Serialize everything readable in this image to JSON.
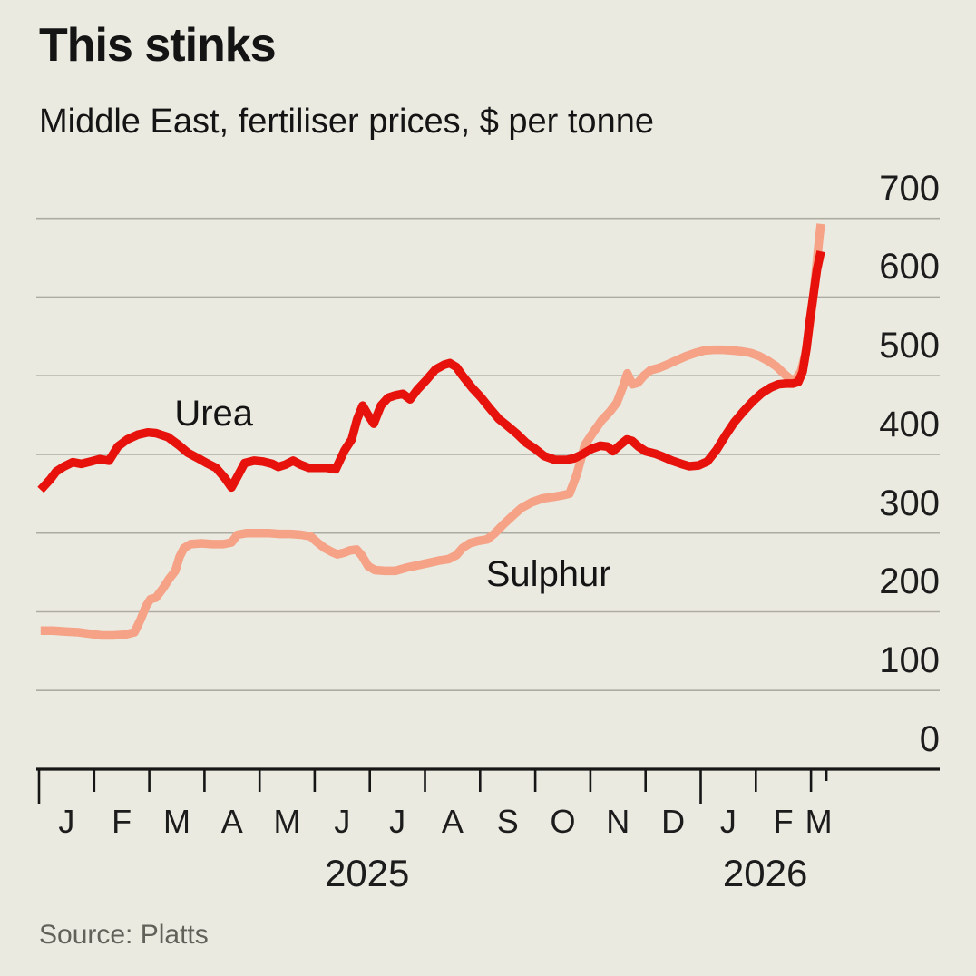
{
  "header": {
    "title": "This stinks",
    "subtitle": "Middle East, fertiliser prices, $ per tonne"
  },
  "source": {
    "text": "Source: Platts"
  },
  "colors": {
    "background": "#EBEAE1",
    "urea": "#E6120B",
    "sulphur": "#F5A286",
    "gridline": "#ADACA3",
    "axis": "#161616",
    "text": "#141414",
    "source_text": "#61615A"
  },
  "chart_data": {
    "type": "line",
    "title": "This stinks",
    "subtitle": "Middle East, fertiliser prices, $ per tonne",
    "ylabel": "$ per tonne",
    "ylim": [
      0,
      700
    ],
    "y_ticks": [
      700,
      600,
      500,
      400,
      300,
      200,
      100,
      0
    ],
    "grid": true,
    "legend_position": "inline-labels",
    "x_start": "Jan 2025",
    "x_end": "early Mar 2026",
    "months_shown": 14.28,
    "month_labels": [
      "J",
      "F",
      "M",
      "A",
      "M",
      "J",
      "J",
      "A",
      "S",
      "O",
      "N",
      "D",
      "J",
      "F",
      "M"
    ],
    "long_tick_indices": [
      0,
      12
    ],
    "end_stub_month": 14.28,
    "last_month_label_center": 14.14,
    "year_labels": [
      {
        "label": "2025",
        "month_pos": 5.95
      },
      {
        "label": "2026",
        "month_pos": 13.17
      }
    ],
    "annotations": [
      {
        "text": "Urea",
        "month_pos": 3.17,
        "value": 452
      },
      {
        "text": "Sulphur",
        "month_pos": 9.24,
        "value": 248
      }
    ],
    "series": [
      {
        "name": "Sulphur",
        "color": "#F5A286",
        "points": [
          [
            0.03,
            176
          ],
          [
            0.25,
            176
          ],
          [
            0.48,
            175
          ],
          [
            0.71,
            174
          ],
          [
            0.94,
            172
          ],
          [
            1.13,
            170
          ],
          [
            1.35,
            170
          ],
          [
            1.56,
            171
          ],
          [
            1.73,
            174
          ],
          [
            1.84,
            190
          ],
          [
            1.94,
            207
          ],
          [
            2.02,
            216
          ],
          [
            2.12,
            218
          ],
          [
            2.24,
            229
          ],
          [
            2.35,
            241
          ],
          [
            2.47,
            252
          ],
          [
            2.55,
            270
          ],
          [
            2.63,
            281
          ],
          [
            2.75,
            286
          ],
          [
            2.94,
            287
          ],
          [
            3.14,
            286
          ],
          [
            3.34,
            286
          ],
          [
            3.49,
            288
          ],
          [
            3.6,
            298
          ],
          [
            3.77,
            300
          ],
          [
            3.96,
            300
          ],
          [
            4.16,
            300
          ],
          [
            4.36,
            299
          ],
          [
            4.56,
            299
          ],
          [
            4.75,
            298
          ],
          [
            4.92,
            296
          ],
          [
            5.05,
            288
          ],
          [
            5.18,
            281
          ],
          [
            5.31,
            276
          ],
          [
            5.41,
            273
          ],
          [
            5.53,
            275
          ],
          [
            5.64,
            278
          ],
          [
            5.76,
            279
          ],
          [
            5.86,
            271
          ],
          [
            5.97,
            258
          ],
          [
            6.09,
            253
          ],
          [
            6.27,
            252
          ],
          [
            6.46,
            252
          ],
          [
            6.66,
            256
          ],
          [
            6.86,
            259
          ],
          [
            7.06,
            262
          ],
          [
            7.25,
            265
          ],
          [
            7.43,
            267
          ],
          [
            7.57,
            272
          ],
          [
            7.68,
            281
          ],
          [
            7.81,
            287
          ],
          [
            7.96,
            290
          ],
          [
            8.13,
            292
          ],
          [
            8.27,
            300
          ],
          [
            8.42,
            311
          ],
          [
            8.59,
            322
          ],
          [
            8.75,
            332
          ],
          [
            8.93,
            339
          ],
          [
            9.13,
            344
          ],
          [
            9.33,
            346
          ],
          [
            9.49,
            348
          ],
          [
            9.62,
            350
          ],
          [
            9.75,
            374
          ],
          [
            9.9,
            412
          ],
          [
            10.05,
            428
          ],
          [
            10.2,
            443
          ],
          [
            10.35,
            454
          ],
          [
            10.48,
            466
          ],
          [
            10.59,
            486
          ],
          [
            10.67,
            503
          ],
          [
            10.76,
            489
          ],
          [
            10.86,
            491
          ],
          [
            10.97,
            500
          ],
          [
            11.09,
            507
          ],
          [
            11.25,
            510
          ],
          [
            11.42,
            515
          ],
          [
            11.58,
            520
          ],
          [
            11.74,
            525
          ],
          [
            11.91,
            529
          ],
          [
            12.07,
            532
          ],
          [
            12.24,
            533
          ],
          [
            12.4,
            533
          ],
          [
            12.57,
            532
          ],
          [
            12.73,
            531
          ],
          [
            12.9,
            529
          ],
          [
            13.06,
            525
          ],
          [
            13.22,
            519
          ],
          [
            13.37,
            512
          ],
          [
            13.52,
            502
          ],
          [
            13.64,
            495
          ],
          [
            13.73,
            496
          ],
          [
            13.82,
            506
          ],
          [
            13.9,
            528
          ],
          [
            13.96,
            556
          ],
          [
            14.03,
            592
          ],
          [
            14.1,
            640
          ],
          [
            14.15,
            675
          ],
          [
            14.18,
            693
          ]
        ]
      },
      {
        "name": "Urea",
        "color": "#E6120B",
        "points": [
          [
            0.03,
            355
          ],
          [
            0.2,
            368
          ],
          [
            0.31,
            378
          ],
          [
            0.44,
            384
          ],
          [
            0.61,
            390
          ],
          [
            0.77,
            388
          ],
          [
            0.94,
            391
          ],
          [
            1.1,
            394
          ],
          [
            1.27,
            392
          ],
          [
            1.43,
            410
          ],
          [
            1.6,
            419
          ],
          [
            1.79,
            425
          ],
          [
            1.97,
            428
          ],
          [
            2.12,
            427
          ],
          [
            2.34,
            422
          ],
          [
            2.53,
            412
          ],
          [
            2.7,
            402
          ],
          [
            2.86,
            396
          ],
          [
            3.04,
            389
          ],
          [
            3.21,
            383
          ],
          [
            3.37,
            370
          ],
          [
            3.49,
            358
          ],
          [
            3.6,
            372
          ],
          [
            3.73,
            389
          ],
          [
            3.9,
            392
          ],
          [
            4.06,
            391
          ],
          [
            4.23,
            388
          ],
          [
            4.34,
            384
          ],
          [
            4.47,
            387
          ],
          [
            4.61,
            392
          ],
          [
            4.74,
            387
          ],
          [
            4.89,
            383
          ],
          [
            5.05,
            383
          ],
          [
            5.21,
            383
          ],
          [
            5.38,
            381
          ],
          [
            5.54,
            405
          ],
          [
            5.67,
            419
          ],
          [
            5.77,
            445
          ],
          [
            5.87,
            462
          ],
          [
            5.97,
            450
          ],
          [
            6.07,
            439
          ],
          [
            6.2,
            462
          ],
          [
            6.33,
            472
          ],
          [
            6.46,
            475
          ],
          [
            6.6,
            477
          ],
          [
            6.73,
            470
          ],
          [
            6.86,
            482
          ],
          [
            7.02,
            494
          ],
          [
            7.19,
            508
          ],
          [
            7.35,
            514
          ],
          [
            7.45,
            516
          ],
          [
            7.57,
            511
          ],
          [
            7.68,
            500
          ],
          [
            7.85,
            485
          ],
          [
            8.01,
            473
          ],
          [
            8.17,
            459
          ],
          [
            8.34,
            445
          ],
          [
            8.5,
            436
          ],
          [
            8.67,
            426
          ],
          [
            8.83,
            415
          ],
          [
            9.0,
            407
          ],
          [
            9.16,
            398
          ],
          [
            9.36,
            393
          ],
          [
            9.57,
            393
          ],
          [
            9.7,
            395
          ],
          [
            9.85,
            400
          ],
          [
            10.02,
            407
          ],
          [
            10.18,
            411
          ],
          [
            10.31,
            410
          ],
          [
            10.41,
            404
          ],
          [
            10.54,
            412
          ],
          [
            10.66,
            419
          ],
          [
            10.76,
            417
          ],
          [
            10.87,
            410
          ],
          [
            11.0,
            404
          ],
          [
            11.17,
            401
          ],
          [
            11.32,
            397
          ],
          [
            11.48,
            392
          ],
          [
            11.65,
            388
          ],
          [
            11.79,
            385
          ],
          [
            11.96,
            386
          ],
          [
            12.12,
            391
          ],
          [
            12.29,
            406
          ],
          [
            12.45,
            424
          ],
          [
            12.61,
            441
          ],
          [
            12.78,
            455
          ],
          [
            12.94,
            467
          ],
          [
            13.11,
            478
          ],
          [
            13.27,
            485
          ],
          [
            13.41,
            489
          ],
          [
            13.54,
            490
          ],
          [
            13.67,
            490
          ],
          [
            13.77,
            492
          ],
          [
            13.85,
            505
          ],
          [
            13.92,
            535
          ],
          [
            13.98,
            570
          ],
          [
            14.05,
            605
          ],
          [
            14.11,
            635
          ],
          [
            14.18,
            658
          ]
        ]
      }
    ]
  }
}
